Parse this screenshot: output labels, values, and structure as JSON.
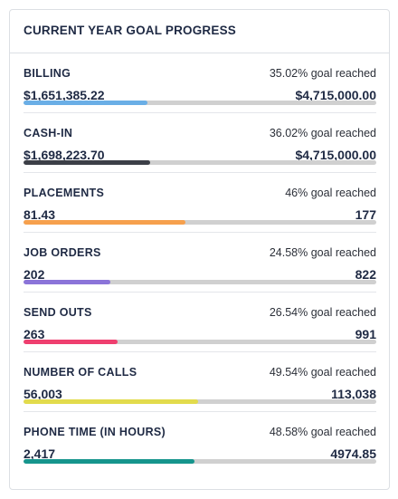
{
  "header": {
    "title": "CURRENT YEAR GOAL PROGRESS"
  },
  "goals": [
    {
      "name": "BILLING",
      "goal_text": "35.02% goal reached",
      "current": "$1,651,385.22",
      "target": "$4,715,000.00",
      "progress": 35.02,
      "color": "#6aaee6"
    },
    {
      "name": "CASH-IN",
      "goal_text": "36.02% goal reached",
      "current": "$1,698,223.70",
      "target": "$4,715,000.00",
      "progress": 36.02,
      "color": "#3c3f47"
    },
    {
      "name": "PLACEMENTS",
      "goal_text": "46% goal reached",
      "current": "81.43",
      "target": "177",
      "progress": 46,
      "color": "#f6a04d"
    },
    {
      "name": "JOB ORDERS",
      "goal_text": "24.58% goal reached",
      "current": "202",
      "target": "822",
      "progress": 24.58,
      "color": "#8b74d9"
    },
    {
      "name": "SEND OUTS",
      "goal_text": "26.54% goal reached",
      "current": "263",
      "target": "991",
      "progress": 26.54,
      "color": "#ef3f6f"
    },
    {
      "name": "NUMBER OF CALLS",
      "goal_text": "49.54% goal reached",
      "current": "56,003",
      "target": "113,038",
      "progress": 49.54,
      "color": "#e2db4c"
    },
    {
      "name": "PHONE TIME (IN HOURS)",
      "goal_text": "48.58% goal reached",
      "current": "2,417",
      "target": "4974.85",
      "progress": 48.58,
      "color": "#16958d"
    }
  ]
}
